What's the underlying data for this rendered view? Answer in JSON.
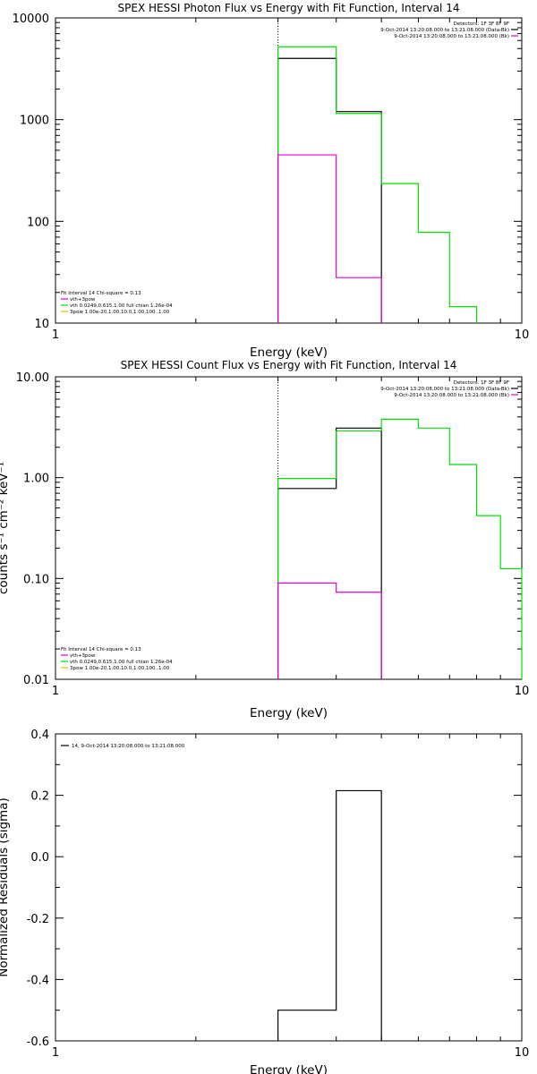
{
  "chart_data": [
    {
      "type": "line",
      "title": "SPEX HESSI Photon Flux vs Energy with Fit Function, Interval 14",
      "xlabel": "Energy (keV)",
      "ylabel": "",
      "x_scale": "log",
      "y_scale": "log",
      "xlim": [
        1,
        10
      ],
      "ylim": [
        10,
        10000
      ],
      "x_ticks": [
        "1",
        "10"
      ],
      "y_ticks": [
        "10000",
        "1000",
        "100",
        "10"
      ],
      "vline_x": 3,
      "info_lines": [
        "Detectors: 1F 3F 8F 9F",
        "9-Oct-2014 13:20:08.000 to 13:21:08.000 (Data-Bk)",
        "9-Oct-2014 13:20:08.000 to 13:21:08.000 (Bk)"
      ],
      "legend_position": "bottom-left",
      "legend": [
        "Fit Interval 14   Chi-square = 0.13",
        "vth+3pow",
        "vth 0.0249,0.615,1.00  full chian 1.26e-04",
        "3pow 1.00e-20,1.00,10.0,1.00,100.,1.00"
      ],
      "colors": {
        "data": "#000000",
        "fit": "#00e000",
        "bk": "#e000e0",
        "pow": "#e0c000"
      },
      "series": [
        {
          "name": "9-Oct-2014 13:20:08.000 to 13:21:08.000 (Data-Bk)",
          "edges": [
            3,
            4,
            5
          ],
          "values": [
            4000,
            1200
          ]
        },
        {
          "name": "vth+3pow",
          "edges": [
            3,
            4,
            5,
            6,
            7,
            8
          ],
          "values": [
            5200,
            1150,
            235,
            78,
            14.5
          ]
        },
        {
          "name": "9-Oct-2014 13:20:08.000 to 13:21:08.000 (Bk)",
          "edges": [
            3,
            4,
            5
          ],
          "values": [
            450,
            28
          ]
        }
      ]
    },
    {
      "type": "line",
      "title": "SPEX HESSI Count Flux vs Energy with Fit Function, Interval 14",
      "xlabel": "Energy (keV)",
      "ylabel": "counts s⁻¹ cm⁻² keV⁻¹",
      "x_scale": "log",
      "y_scale": "log",
      "xlim": [
        1,
        10
      ],
      "ylim": [
        0.01,
        10
      ],
      "x_ticks": [
        "1",
        "10"
      ],
      "y_ticks": [
        "10.00",
        "1.00",
        "0.10",
        "0.01"
      ],
      "vline_x": 3,
      "info_lines": [
        "Detectors: 1F 3F 8F 9F",
        "9-Oct-2014 13:20:08.000 to 13:21:08.000 (Data-Bk)",
        "9-Oct-2014 13:20:08.000 to 13:21:08.000 (Bk)"
      ],
      "legend_position": "bottom-left",
      "legend": [
        "Fit Interval 14   Chi-square = 0.13",
        "vth+3pow",
        "vth 0.0249,0.615,1.00  full chian 1.26e-04",
        "3pow 1.00e-20,1.00,10.0,1.00,100.,1.00"
      ],
      "colors": {
        "data": "#000000",
        "fit": "#00e000",
        "bk": "#e000e0",
        "pow": "#e0c000"
      },
      "series": [
        {
          "name": "9-Oct-2014 13:20:08.000 to 13:21:08.000 (Data-Bk)",
          "edges": [
            3,
            4,
            5
          ],
          "values": [
            0.78,
            3.1
          ]
        },
        {
          "name": "vth+3pow",
          "edges": [
            3,
            4,
            5,
            6,
            7,
            8,
            9,
            10
          ],
          "values": [
            0.98,
            2.9,
            3.8,
            3.1,
            1.35,
            0.42,
            0.125
          ]
        },
        {
          "name": "9-Oct-2014 13:20:08.000 to 13:21:08.000 (Bk)",
          "edges": [
            3,
            4,
            5
          ],
          "values": [
            0.09,
            0.073
          ]
        }
      ]
    },
    {
      "type": "line",
      "title": "",
      "xlabel": "Energy (keV)",
      "ylabel": "Normalized Residuals (sigma)",
      "x_scale": "log",
      "y_scale": "linear",
      "xlim": [
        1,
        10
      ],
      "ylim": [
        -0.6,
        0.4
      ],
      "x_ticks": [
        "1",
        "10"
      ],
      "y_ticks": [
        "0.4",
        "0.2",
        "0.0",
        "-0.2",
        "-0.4",
        "-0.6"
      ],
      "legend_position": "top-left",
      "legend": [
        "14,  9-Oct-2014 13:20:08.000 to 13:21:08.000"
      ],
      "colors": {
        "data": "#000000"
      },
      "series": [
        {
          "name": "14,  9-Oct-2014 13:20:08.000 to 13:21:08.000",
          "edges": [
            3,
            4,
            5
          ],
          "values": [
            -0.5,
            0.215
          ]
        }
      ]
    }
  ]
}
